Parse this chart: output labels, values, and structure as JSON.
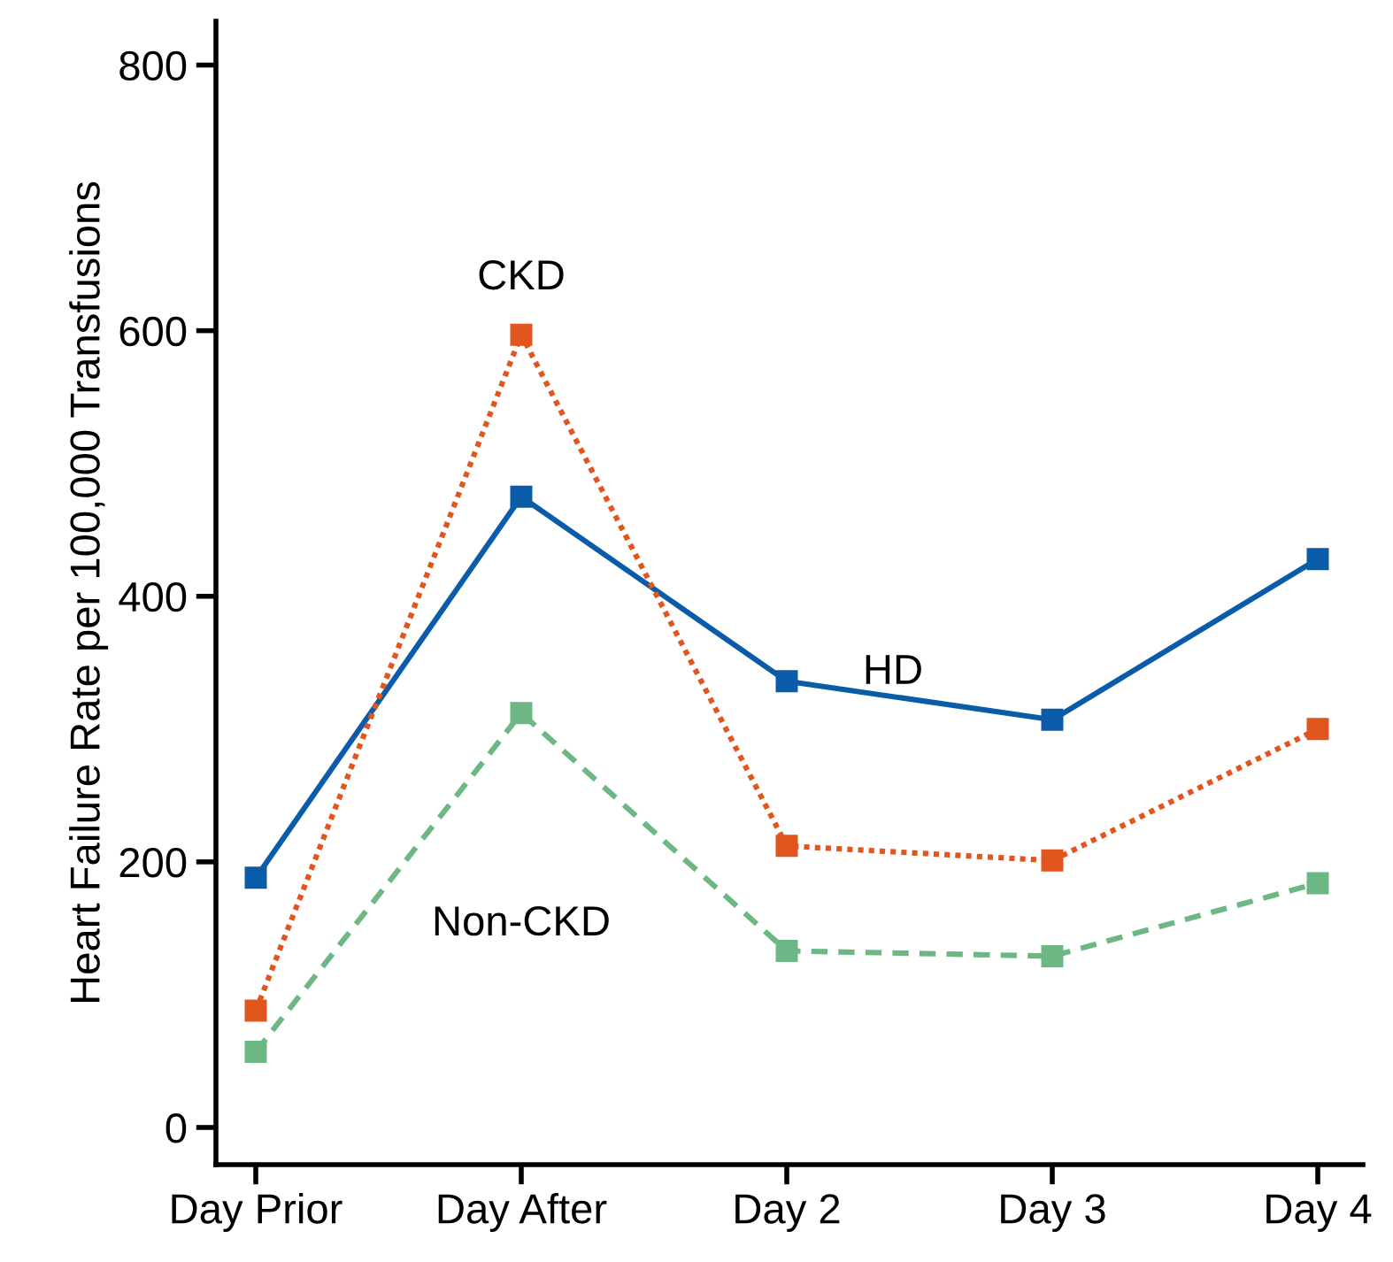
{
  "chart_data": {
    "type": "line",
    "ylabel": "Heart Failure Rate per 100,000 Transfusions",
    "categories": [
      "Day Prior",
      "Day After",
      "Day 2",
      "Day 3",
      "Day 4"
    ],
    "series": [
      {
        "name": "HD",
        "color": "#0a5ca8",
        "line_style": "solid",
        "values": [
          188,
          475,
          336,
          307,
          428
        ]
      },
      {
        "name": "CKD",
        "color": "#e0561e",
        "line_style": "dotted",
        "values": [
          88,
          597,
          212,
          201,
          300
        ]
      },
      {
        "name": "Non-CKD",
        "color": "#6db784",
        "line_style": "dashed",
        "values": [
          57,
          312,
          133,
          129,
          184
        ]
      }
    ],
    "ylim": [
      -28,
      833
    ],
    "yticks": [
      0,
      200,
      400,
      600,
      800
    ],
    "marker": "square",
    "grid": false,
    "legend": false
  }
}
